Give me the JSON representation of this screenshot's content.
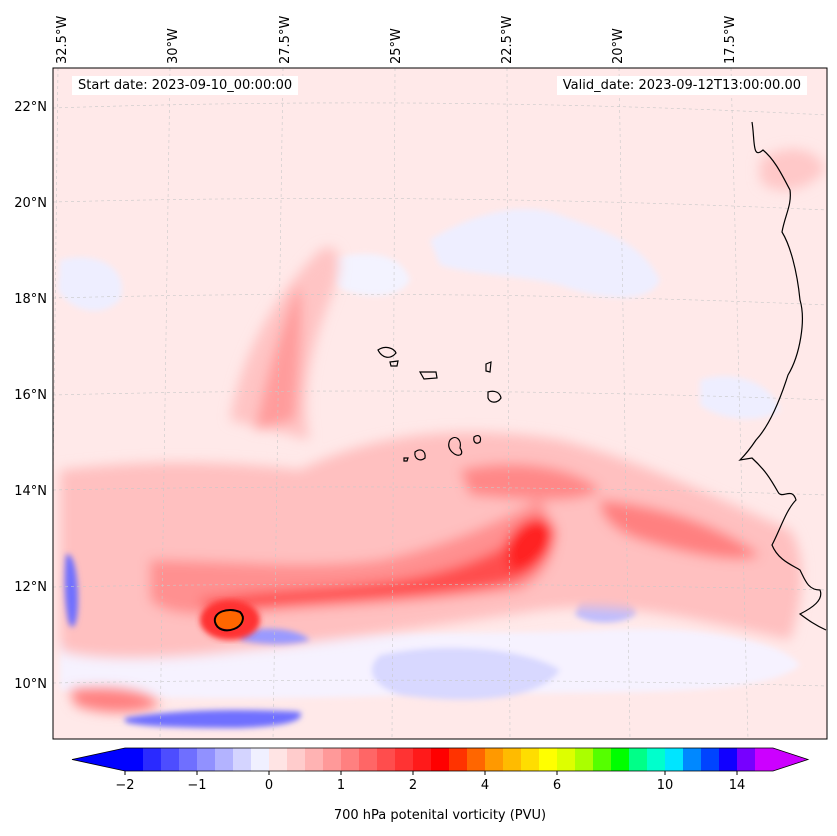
{
  "chart_data": {
    "type": "map-contour",
    "header": {
      "start_date": "Start date: 2023-09-10_00:00:00",
      "valid_date": "Valid_date: 2023-09-12T13:00:00.00"
    },
    "lon_labels": [
      "32.5°W",
      "30°W",
      "27.5°W",
      "25°W",
      "22.5°W",
      "20°W",
      "17.5°W"
    ],
    "lat_labels": [
      "22°N",
      "20°N",
      "18°N",
      "16°N",
      "14°N",
      "12°N",
      "10°N"
    ],
    "colorbar": {
      "label": "700 hPa potenital vorticity (PVU)",
      "ticks": [
        "-2",
        "-1",
        "0",
        "1",
        "2",
        "4",
        "6",
        "10",
        "14"
      ],
      "extend": "both",
      "colors": [
        "#0000ff",
        "#2a2aff",
        "#4d4dff",
        "#6f6fff",
        "#9191ff",
        "#b3b3ff",
        "#d4d4ff",
        "#f0f0ff",
        "#ffe4e4",
        "#ffcccc",
        "#ffb3b3",
        "#ff9999",
        "#ff8080",
        "#ff6666",
        "#ff4d4d",
        "#ff3333",
        "#ff1a1a",
        "#ff0000",
        "#ff3300",
        "#ff6600",
        "#ff9900",
        "#ffbb00",
        "#ffdd00",
        "#ffff00",
        "#ddff00",
        "#aaff00",
        "#55ff00",
        "#00ff00",
        "#00ff88",
        "#00ffcc",
        "#00e5ff",
        "#0088ff",
        "#0044ff",
        "#1100ff",
        "#7700ff",
        "#cc00ff"
      ]
    },
    "field": {
      "background_color": "#ffe9e9",
      "features": [
        {
          "name": "trough-band-main",
          "lon": [
            -32.0,
            -16.0
          ],
          "lat": [
            11.3,
            13.5
          ],
          "pvu_max": 2.0
        },
        {
          "name": "max-center-east",
          "lon": -21.5,
          "lat": 12.5,
          "pvu_max": 2.5
        },
        {
          "name": "vortex-center-west",
          "lon": -29.3,
          "lat": 11.3,
          "pvu_max": 3.0
        },
        {
          "name": "plume-north",
          "lon": -27.5,
          "lat": [
            14.5,
            18.5
          ],
          "pvu_max": 1.0
        },
        {
          "name": "negative-band-south",
          "lon": [
            -30.5,
            -27.0
          ],
          "lat": 9.3,
          "pvu_min": -1.5
        },
        {
          "name": "negative-strip-west",
          "lon": -32.4,
          "lat": [
            11.2,
            12.8
          ],
          "pvu_min": -1.0
        }
      ]
    }
  }
}
